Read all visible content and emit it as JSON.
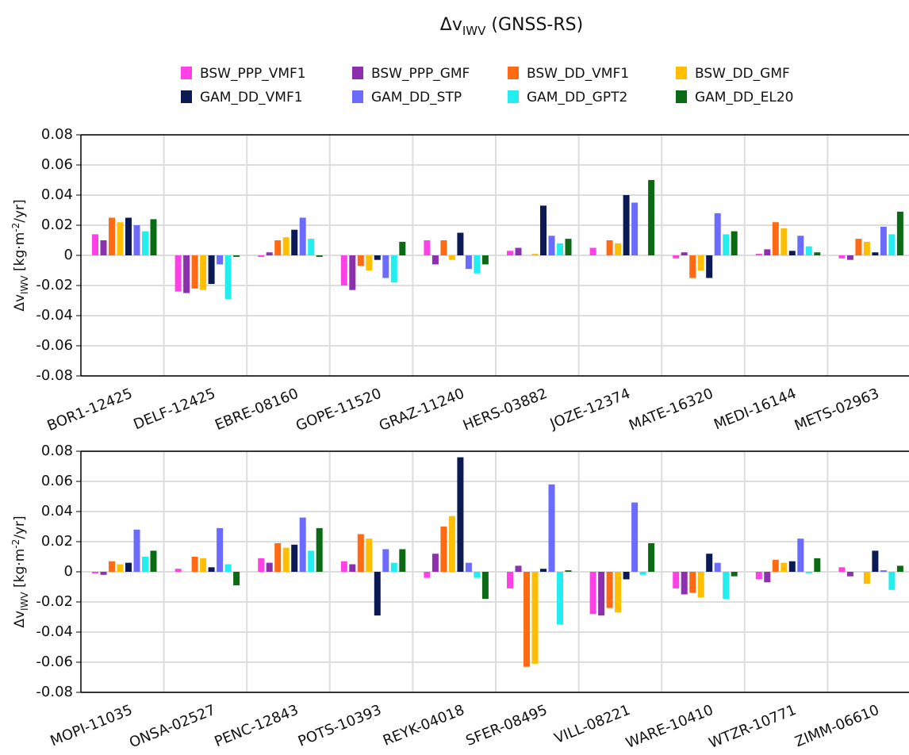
{
  "title": {
    "main": "Δv",
    "sub": "IWV",
    "rest": " (GNSS-RS)"
  },
  "chart_data": [
    {
      "type": "bar",
      "ylabel": {
        "main": "Δv",
        "sub": "IWV",
        "unit": " [kg·m",
        "sup": "-2",
        "end": "/yr]"
      },
      "categories": [
        "BOR1-12425",
        "DELF-12425",
        "EBRE-08160",
        "GOPE-11520",
        "GRAZ-11240",
        "HERS-03882",
        "JOZE-12374",
        "MATE-16320",
        "MEDI-16144",
        "METS-02963"
      ],
      "ylim": [
        -0.08,
        0.08
      ],
      "yticks": [
        -0.08,
        -0.06,
        -0.04,
        -0.02,
        0,
        0.02,
        0.04,
        0.06,
        0.08
      ],
      "grid": true,
      "series": [
        {
          "name": "BSW_PPP_VMF1",
          "color": "#ff40e6",
          "values": [
            0.014,
            -0.024,
            -0.001,
            -0.02,
            0.01,
            0.003,
            0.005,
            -0.002,
            0.001,
            -0.002
          ]
        },
        {
          "name": "BSW_PPP_GMF",
          "color": "#8e2fb0",
          "values": [
            0.01,
            -0.025,
            0.002,
            -0.023,
            -0.006,
            0.005,
            0,
            0.002,
            0.004,
            -0.003
          ]
        },
        {
          "name": "BSW_DD_VMF1",
          "color": "#ff6a13",
          "values": [
            0.025,
            -0.022,
            0.01,
            -0.007,
            0.01,
            0,
            0.01,
            -0.015,
            0.022,
            0.011
          ]
        },
        {
          "name": "BSW_DD_GMF",
          "color": "#ffbf00",
          "values": [
            0.022,
            -0.023,
            0.012,
            -0.01,
            -0.003,
            0.001,
            0.008,
            -0.01,
            0.018,
            0.009
          ]
        },
        {
          "name": "GAM_DD_VMF1",
          "color": "#0b1a55",
          "values": [
            0.025,
            -0.019,
            0.017,
            -0.003,
            0.015,
            0.033,
            0.04,
            -0.015,
            0.003,
            0.002
          ]
        },
        {
          "name": "GAM_DD_STP",
          "color": "#6b6bff",
          "values": [
            0.02,
            -0.006,
            0.025,
            -0.015,
            -0.009,
            0.013,
            0.035,
            0.028,
            0.013,
            0.019
          ]
        },
        {
          "name": "GAM_DD_GPT2",
          "color": "#22eef0",
          "values": [
            0.016,
            -0.029,
            0.011,
            -0.018,
            -0.012,
            0.008,
            0,
            0.014,
            0.006,
            0.014
          ]
        },
        {
          "name": "GAM_DD_EL20",
          "color": "#0a6b14",
          "values": [
            0.024,
            -0.001,
            -0.001,
            0.009,
            -0.006,
            0.011,
            0.05,
            0.016,
            0.002,
            0.029
          ]
        }
      ]
    },
    {
      "type": "bar",
      "ylabel": {
        "main": "Δv",
        "sub": "IWV",
        "unit": " [kg·m",
        "sup": "-2",
        "end": "/yr]"
      },
      "categories": [
        "MOPI-11035",
        "ONSA-02527",
        "PENC-12843",
        "POTS-10393",
        "REYK-04018",
        "SFER-08495",
        "VILL-08221",
        "WARE-10410",
        "WTZR-10771",
        "ZIMM-06610"
      ],
      "ylim": [
        -0.08,
        0.08
      ],
      "yticks": [
        -0.08,
        -0.06,
        -0.04,
        -0.02,
        0,
        0.02,
        0.04,
        0.06,
        0.08
      ],
      "grid": true,
      "series": [
        {
          "color": "#ff40e6",
          "values": [
            -0.001,
            0.002,
            0.009,
            0.007,
            -0.004,
            -0.011,
            -0.028,
            -0.011,
            -0.005,
            0.003
          ]
        },
        {
          "color": "#8e2fb0",
          "values": [
            -0.002,
            0,
            0.006,
            0.005,
            0.012,
            0.004,
            -0.029,
            -0.015,
            -0.007,
            -0.003
          ]
        },
        {
          "color": "#ff6a13",
          "values": [
            0.007,
            0.01,
            0.019,
            0.025,
            0.03,
            -0.063,
            -0.024,
            -0.014,
            0.008,
            0
          ]
        },
        {
          "color": "#ffbf00",
          "values": [
            0.005,
            0.009,
            0.016,
            0.022,
            0.037,
            -0.061,
            -0.027,
            -0.017,
            0.006,
            -0.008
          ]
        },
        {
          "color": "#0b1a55",
          "values": [
            0.006,
            0.003,
            0.018,
            -0.029,
            0.076,
            0.002,
            -0.005,
            0.012,
            0.007,
            0.014
          ]
        },
        {
          "color": "#6b6bff",
          "values": [
            0.028,
            0.029,
            0.036,
            0.015,
            0.006,
            0.058,
            0.046,
            0.006,
            0.022,
            0.001
          ]
        },
        {
          "color": "#22eef0",
          "values": [
            0.01,
            0.005,
            0.014,
            0.006,
            -0.004,
            -0.035,
            -0.002,
            -0.018,
            -0.001,
            -0.012
          ]
        },
        {
          "color": "#0a6b14",
          "values": [
            0.014,
            -0.009,
            0.029,
            0.015,
            -0.018,
            0.001,
            0.019,
            -0.003,
            0.009,
            0.004
          ]
        }
      ]
    }
  ]
}
